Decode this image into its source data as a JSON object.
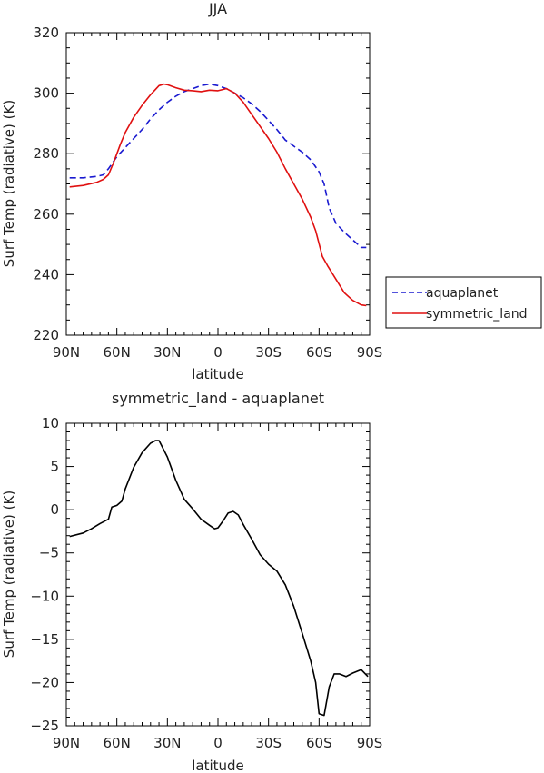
{
  "chart_data": [
    {
      "type": "line",
      "title": "JJA",
      "xlabel": "latitude",
      "ylabel": "Surf Temp (radiative) (K)",
      "xlim": [
        90,
        -90
      ],
      "ylim": [
        220,
        320
      ],
      "x_ticks": [
        "90N",
        "60N",
        "30N",
        "0",
        "30S",
        "60S",
        "90S"
      ],
      "y_ticks": [
        "220",
        "240",
        "260",
        "280",
        "300",
        "320"
      ],
      "legend_position": "right",
      "series": [
        {
          "name": "aquaplanet",
          "color": "#1a1ad0",
          "dash": "dashed",
          "x": [
            88,
            80,
            72,
            68,
            65,
            60,
            55,
            50,
            45,
            40,
            35,
            30,
            25,
            20,
            15,
            10,
            5,
            0,
            -5,
            -10,
            -15,
            -20,
            -25,
            -30,
            -35,
            -40,
            -45,
            -50,
            -55,
            -60,
            -63,
            -66,
            -70,
            -75,
            -80,
            -85,
            -88
          ],
          "y": [
            272,
            272,
            272.5,
            273,
            275,
            279,
            282,
            285,
            288,
            291.5,
            294.5,
            297,
            299,
            300.5,
            301.5,
            302.5,
            303,
            302.5,
            301.5,
            300,
            298.5,
            296.5,
            294,
            291,
            288,
            284.5,
            282.5,
            280.5,
            278,
            274,
            270,
            262,
            257,
            254,
            251.5,
            249,
            249
          ]
        },
        {
          "name": "symmetric_land",
          "color": "#e01010",
          "dash": "solid",
          "x": [
            88,
            80,
            72,
            68,
            65,
            62,
            58,
            55,
            50,
            45,
            40,
            35,
            32,
            30,
            25,
            20,
            15,
            10,
            5,
            0,
            -5,
            -10,
            -15,
            -20,
            -25,
            -30,
            -35,
            -40,
            -45,
            -50,
            -55,
            -58,
            -62,
            -65,
            -70,
            -75,
            -80,
            -85,
            -88
          ],
          "y": [
            269,
            269.5,
            270.5,
            271.5,
            273,
            277,
            283,
            287,
            292,
            296,
            299.5,
            302.5,
            303,
            302.8,
            301.8,
            301,
            300.8,
            300.5,
            301,
            300.8,
            301.5,
            300,
            297,
            293,
            289,
            285,
            280.5,
            275,
            270,
            265,
            259,
            254.5,
            246,
            243,
            238.5,
            234,
            231.5,
            230,
            229.8
          ]
        }
      ]
    },
    {
      "type": "line",
      "title": "symmetric_land - aquaplanet",
      "xlabel": "latitude",
      "ylabel": "Surf Temp (radiative) (K)",
      "xlim": [
        90,
        -90
      ],
      "ylim": [
        -25,
        10
      ],
      "x_ticks": [
        "90N",
        "60N",
        "30N",
        "0",
        "30S",
        "60S",
        "90S"
      ],
      "y_ticks": [
        "−25",
        "−20",
        "−15",
        "−10",
        "−5",
        "0",
        "5",
        "10"
      ],
      "series": [
        {
          "color": "#000000",
          "dash": "solid",
          "x": [
            88,
            80,
            75,
            70,
            65,
            63,
            60,
            57,
            55,
            50,
            45,
            40,
            37,
            35,
            30,
            25,
            20,
            15,
            10,
            5,
            2,
            0,
            -3,
            -6,
            -9,
            -12,
            -15,
            -20,
            -25,
            -30,
            -35,
            -40,
            -45,
            -50,
            -55,
            -58,
            -60,
            -63,
            -66,
            -69,
            -72,
            -76,
            -80,
            -85,
            -89
          ],
          "y": [
            -3.1,
            -2.7,
            -2.2,
            -1.6,
            -1.1,
            0.3,
            0.5,
            1.0,
            2.4,
            4.9,
            6.6,
            7.7,
            8.0,
            8.0,
            6.1,
            3.4,
            1.2,
            0.1,
            -1.1,
            -1.8,
            -2.2,
            -2.1,
            -1.3,
            -0.4,
            -0.2,
            -0.6,
            -1.7,
            -3.4,
            -5.2,
            -6.3,
            -7.1,
            -8.7,
            -11.2,
            -14.3,
            -17.5,
            -20.0,
            -23.6,
            -23.8,
            -20.5,
            -19.0,
            -19.0,
            -19.3,
            -18.9,
            -18.5,
            -19.3
          ]
        }
      ]
    }
  ]
}
